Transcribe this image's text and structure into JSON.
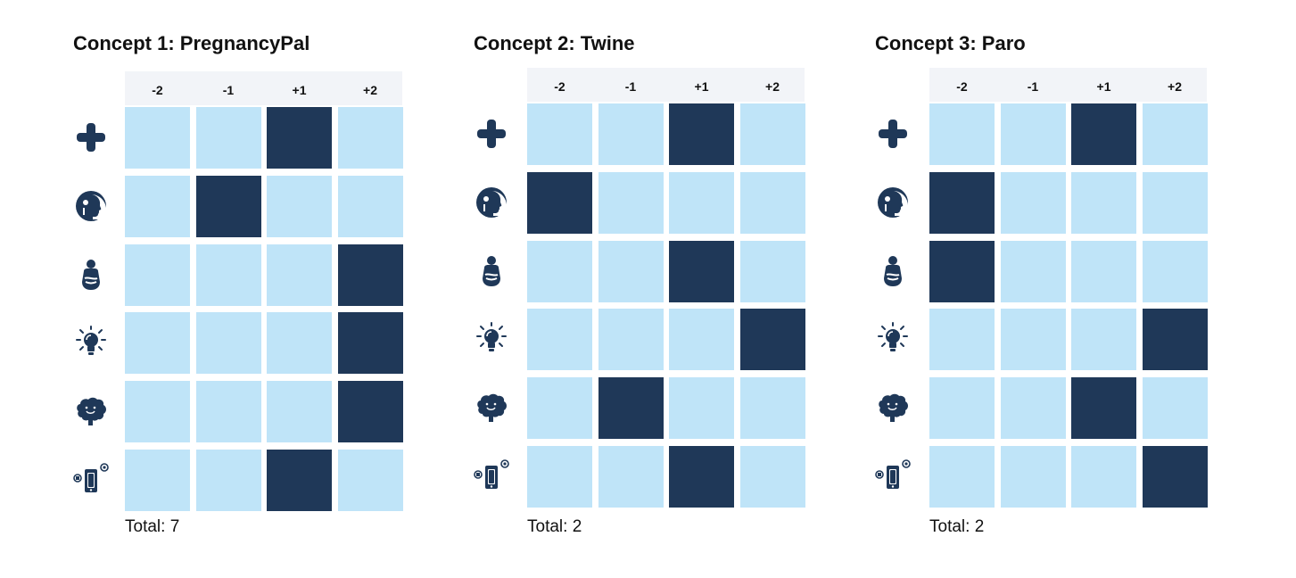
{
  "colors": {
    "selected": "#1f3858",
    "unselected": "#bfe4f8",
    "header_band": "#f2f4f8"
  },
  "scale_labels": [
    "-2",
    "-1",
    "+1",
    "+2"
  ],
  "row_icons": [
    "medical-cross-icon",
    "head-profile-icon",
    "pregnant-person-icon",
    "lightbulb-icon",
    "brain-icon",
    "smartphone-icon"
  ],
  "concepts": [
    {
      "title": "Concept 1: PregnancyPal",
      "selected": [
        2,
        1,
        3,
        3,
        3,
        2
      ],
      "total": "Total: 7"
    },
    {
      "title": "Concept 2: Twine",
      "selected": [
        2,
        0,
        2,
        3,
        1,
        2
      ],
      "total": "Total: 2"
    },
    {
      "title": "Concept 3: Paro",
      "selected": [
        2,
        0,
        0,
        3,
        2,
        3
      ],
      "total": "Total: 2"
    }
  ]
}
